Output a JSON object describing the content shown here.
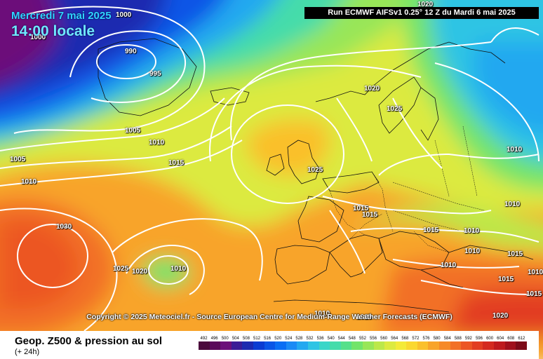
{
  "header": {
    "date": "Mercredi 7 mai 2025",
    "time": "14:00 locale",
    "run": "Run ECMWF AIFSv1 0.25° 12 Z du Mardi 6 mai 2025"
  },
  "copyright": "Copyright © 2025 Meteociel.fr - Source European Centre for Medium-Range Weather Forecasts (ECMWF)",
  "isobar_labels": [
    "990",
    "995",
    "1000",
    "1000",
    "1005",
    "1005",
    "1010",
    "1010",
    "1015",
    "1020",
    "1020",
    "1025",
    "1025",
    "1030",
    "1025",
    "1020",
    "1010",
    "1015",
    "1015",
    "1015",
    "1010",
    "1010",
    "1010",
    "1010",
    "1015",
    "1015",
    "1010",
    "1010",
    "1015",
    "1010",
    "1010",
    "1020"
  ],
  "footer": {
    "title": "Geop. Z500 & pression au sol",
    "subtitle": "(+ 24h)"
  },
  "scale": {
    "ticks": [
      "492",
      "496",
      "500",
      "504",
      "508",
      "512",
      "516",
      "520",
      "524",
      "528",
      "532",
      "536",
      "540",
      "544",
      "548",
      "552",
      "556",
      "560",
      "564",
      "568",
      "572",
      "576",
      "580",
      "584",
      "588",
      "592",
      "596",
      "600",
      "604",
      "608",
      "612"
    ],
    "colors": [
      "#4b0a3c",
      "#5a0a5a",
      "#6c107a",
      "#3b1c96",
      "#1d2ab0",
      "#0b3cd2",
      "#0a55e6",
      "#0a6ef4",
      "#1a8af5",
      "#22a8f0",
      "#2ec4e4",
      "#3ad6c8",
      "#45dcaa",
      "#55e08a",
      "#72e46a",
      "#98e658",
      "#bce84a",
      "#dcea40",
      "#f4ea38",
      "#fad830",
      "#fac02c",
      "#f8a42a",
      "#f68a28",
      "#f27026",
      "#ec5624",
      "#e23e22",
      "#d42a20",
      "#be1a1e",
      "#a0101c",
      "#7c0a18"
    ]
  }
}
